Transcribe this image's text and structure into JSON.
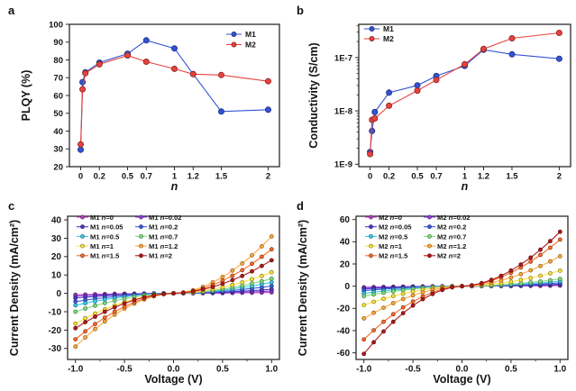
{
  "figure": {
    "panel_labels": [
      "a",
      "b",
      "c",
      "d"
    ],
    "background": "#ffffff",
    "axis_color": "#2b2b2b",
    "series_colors": {
      "M1": "#3353d4",
      "M2": "#e8423e",
      "n0": "#c040c8",
      "n002": "#9044dd",
      "n005": "#5338cc",
      "n02": "#3a5fdd",
      "n05": "#38c8ec",
      "n07": "#7fdc7f",
      "n1": "#fde23a",
      "n12": "#ffa93e",
      "n15": "#f96b2b",
      "n2": "#b01a1a"
    }
  },
  "chart_data": [
    {
      "panel": "a",
      "type": "line",
      "title": "",
      "xlabel": "n",
      "xlabel_italic": true,
      "ylabel": "PLQY (%)",
      "xlim": [
        -0.12,
        2.12
      ],
      "ylim": [
        20,
        100
      ],
      "grid": false,
      "legend_position": "top-right",
      "xticks": [
        0,
        0.2,
        0.5,
        0.7,
        1,
        1.2,
        1.5,
        2
      ],
      "xtick_labels": [
        "0",
        "0.2",
        "0.5",
        "0.7",
        "1",
        "1.2",
        "1.5",
        "2"
      ],
      "yticks": [
        20,
        30,
        40,
        50,
        60,
        70,
        80,
        90,
        100
      ],
      "ytick_labels": [
        "20",
        "30",
        "40",
        "50",
        "60",
        "70",
        "80",
        "90",
        "100"
      ],
      "x": [
        0,
        0.02,
        0.05,
        0.2,
        0.5,
        0.7,
        1,
        1.2,
        1.5,
        2
      ],
      "series": [
        {
          "name": "M1",
          "color": "#3353d4",
          "y": [
            29.5,
            67.5,
            73,
            78.5,
            83.5,
            91,
            86.5,
            72,
            51,
            52
          ]
        },
        {
          "name": "M2",
          "color": "#e8423e",
          "y": [
            32.5,
            63.5,
            72.5,
            77.5,
            82.5,
            79,
            75,
            72,
            71.5,
            68
          ]
        }
      ]
    },
    {
      "panel": "b",
      "type": "line",
      "title": "",
      "xlabel": "n",
      "xlabel_italic": true,
      "ylabel": "Conductivity (S/cm)",
      "xlim": [
        -0.12,
        2.12
      ],
      "ylim": [
        9e-10,
        4.2e-07
      ],
      "yscale": "log",
      "grid": false,
      "legend_position": "top-left",
      "xticks": [
        0,
        0.2,
        0.5,
        0.7,
        1,
        1.2,
        1.5,
        2
      ],
      "xtick_labels": [
        "0",
        "0.2",
        "0.5",
        "0.7",
        "1",
        "1.2",
        "1.5",
        "2"
      ],
      "yticks": [
        1e-09,
        1e-08,
        1e-07
      ],
      "ytick_labels": [
        "1E-9",
        "1E-8",
        "1E-7"
      ],
      "x": [
        0,
        0.02,
        0.05,
        0.2,
        0.5,
        0.7,
        1,
        1.2,
        1.5,
        2
      ],
      "series": [
        {
          "name": "M1",
          "color": "#3353d4",
          "y": [
            1.7e-09,
            4.2e-09,
            9.5e-09,
            2.2e-08,
            3e-08,
            4.5e-08,
            7e-08,
            1.4e-07,
            1.15e-07,
            9.5e-08
          ]
        },
        {
          "name": "M2",
          "color": "#e8423e",
          "y": [
            1.55e-09,
            6.8e-09,
            7.2e-09,
            1.25e-08,
            2.4e-08,
            3.8e-08,
            7.5e-08,
            1.45e-07,
            2.3e-07,
            2.9e-07
          ]
        }
      ]
    },
    {
      "panel": "c",
      "type": "line",
      "title": "",
      "xlabel": "Voltage (V)",
      "ylabel": "Current Density (mA/cm²)",
      "xlim": [
        -1.08,
        1.08
      ],
      "ylim": [
        -36,
        42
      ],
      "grid": false,
      "legend_position": "top-two-column",
      "xticks": [
        -1.0,
        -0.5,
        0.0,
        0.5,
        1.0
      ],
      "xtick_labels": [
        "-1.0",
        "-0.5",
        "0.0",
        "0.5",
        "1.0"
      ],
      "xminor_step": 0.25,
      "yticks": [
        -30,
        -20,
        -10,
        0,
        10,
        20,
        30,
        40
      ],
      "ytick_labels": [
        "-30",
        "-20",
        "-10",
        "0",
        "10",
        "20",
        "30",
        "40"
      ],
      "x": [
        -1,
        -0.9,
        -0.8,
        -0.7,
        -0.6,
        -0.5,
        -0.4,
        -0.3,
        -0.2,
        -0.1,
        0,
        0.1,
        0.2,
        0.3,
        0.4,
        0.5,
        0.6,
        0.7,
        0.8,
        0.9,
        1
      ],
      "series": [
        {
          "name": "M1 n=0",
          "color": "#c040c8",
          "y": [
            -0.8,
            -0.7,
            -0.5,
            -0.4,
            -0.3,
            -0.2,
            -0.2,
            -0.1,
            0.0,
            0.0,
            0,
            0.0,
            0.0,
            0.1,
            0.1,
            0.1,
            0.2,
            0.3,
            0.3,
            0.4,
            0.5
          ]
        },
        {
          "name": "M1 n=0.02",
          "color": "#9044dd",
          "y": [
            -1.5,
            -1.2,
            -1.0,
            -0.8,
            -0.6,
            -0.4,
            -0.3,
            -0.2,
            -0.1,
            0.0,
            0,
            0.0,
            0.1,
            0.1,
            0.2,
            0.3,
            0.5,
            0.6,
            0.8,
            1.0,
            1.2
          ]
        },
        {
          "name": "M1 n=0.05",
          "color": "#5338cc",
          "y": [
            -2.5,
            -2.1,
            -1.7,
            -1.3,
            -1.0,
            -0.7,
            -0.5,
            -0.3,
            -0.1,
            0.0,
            0,
            0.0,
            0.1,
            0.3,
            0.4,
            0.6,
            0.9,
            1.2,
            1.5,
            1.8,
            2.2
          ]
        },
        {
          "name": "M1 n=0.2",
          "color": "#3a5fdd",
          "y": [
            -4.5,
            -3.7,
            -3.0,
            -2.4,
            -1.8,
            -1.3,
            -0.9,
            -0.5,
            -0.2,
            -0.1,
            0,
            0.1,
            0.2,
            0.5,
            0.8,
            1.1,
            1.5,
            2.1,
            2.7,
            3.3,
            4.0
          ]
        },
        {
          "name": "M1 n=0.5",
          "color": "#38c8ec",
          "y": [
            -6.5,
            -5.4,
            -4.3,
            -3.4,
            -2.6,
            -1.9,
            -1.2,
            -0.7,
            -0.4,
            -0.1,
            0,
            0.1,
            0.3,
            0.7,
            1.2,
            1.7,
            2.4,
            3.2,
            4.0,
            5.0,
            6.0
          ]
        },
        {
          "name": "M1 n=0.7",
          "color": "#7fdc7f",
          "y": [
            -10.0,
            -8.3,
            -6.7,
            -5.3,
            -4.0,
            -2.9,
            -1.9,
            -1.1,
            -0.6,
            -0.2,
            0,
            0.1,
            0.4,
            0.9,
            1.5,
            2.3,
            3.2,
            4.2,
            5.4,
            6.6,
            8.0
          ]
        },
        {
          "name": "M1 n=1",
          "color": "#fde23a",
          "y": [
            -16.5,
            -13.6,
            -11.0,
            -8.7,
            -6.6,
            -4.7,
            -3.2,
            -1.9,
            -0.9,
            -0.3,
            0,
            0.2,
            0.6,
            1.3,
            2.2,
            3.3,
            4.6,
            6.0,
            7.7,
            9.5,
            11.5
          ]
        },
        {
          "name": "M1 n=1.2",
          "color": "#ffa93e",
          "y": [
            -29.0,
            -24.0,
            -19.4,
            -15.3,
            -11.6,
            -8.3,
            -5.6,
            -3.3,
            -1.6,
            -0.5,
            0,
            0.5,
            1.7,
            3.5,
            6.0,
            8.9,
            12.4,
            16.3,
            20.7,
            25.6,
            31.0
          ]
        },
        {
          "name": "M1 n=1.5",
          "color": "#f96b2b",
          "y": [
            -25.0,
            -20.7,
            -16.7,
            -13.2,
            -10.0,
            -7.2,
            -4.8,
            -2.9,
            -1.4,
            -0.4,
            0,
            0.4,
            1.3,
            2.7,
            4.6,
            6.9,
            9.6,
            12.6,
            16.1,
            19.9,
            24.0
          ]
        },
        {
          "name": "M1 n=2",
          "color": "#b01a1a",
          "y": [
            -19.0,
            -15.7,
            -12.7,
            -10.0,
            -7.6,
            -5.5,
            -3.6,
            -2.2,
            -1.0,
            -0.3,
            0,
            0.3,
            1.0,
            2.1,
            3.5,
            5.2,
            7.2,
            9.5,
            12.0,
            14.9,
            18.0
          ]
        }
      ]
    },
    {
      "panel": "d",
      "type": "line",
      "title": "",
      "xlabel": "Voltage (V)",
      "ylabel": "Current Density (mA/cm²)",
      "xlim": [
        -1.08,
        1.08
      ],
      "ylim": [
        -66,
        63
      ],
      "grid": false,
      "legend_position": "top-two-column",
      "xticks": [
        -1.0,
        -0.5,
        0.0,
        0.5,
        1.0
      ],
      "xtick_labels": [
        "-1.0",
        "-0.5",
        "0.0",
        "0.5",
        "1.0"
      ],
      "xminor_step": 0.25,
      "yticks": [
        -60,
        -40,
        -20,
        0,
        20,
        40,
        60
      ],
      "ytick_labels": [
        "-60",
        "-40",
        "-20",
        "0",
        "20",
        "40",
        "60"
      ],
      "x": [
        -1,
        -0.9,
        -0.8,
        -0.7,
        -0.6,
        -0.5,
        -0.4,
        -0.3,
        -0.2,
        -0.1,
        0,
        0.1,
        0.2,
        0.3,
        0.4,
        0.5,
        0.6,
        0.7,
        0.8,
        0.9,
        1
      ],
      "series": [
        {
          "name": "M2 n=0",
          "color": "#c040c8",
          "y": [
            -1.0,
            -0.8,
            -0.7,
            -0.5,
            -0.4,
            -0.3,
            -0.2,
            -0.1,
            -0.1,
            0.0,
            0,
            0.0,
            0.0,
            0.1,
            0.1,
            0.1,
            0.2,
            0.3,
            0.3,
            0.4,
            0.5
          ]
        },
        {
          "name": "M2 n=0.02",
          "color": "#9044dd",
          "y": [
            -1.5,
            -1.2,
            -1.0,
            -0.8,
            -0.6,
            -0.4,
            -0.3,
            -0.2,
            -0.1,
            0.0,
            0,
            0.0,
            0.1,
            0.1,
            0.2,
            0.3,
            0.4,
            0.5,
            0.7,
            0.8,
            1.0
          ]
        },
        {
          "name": "M2 n=0.05",
          "color": "#5338cc",
          "y": [
            -2.5,
            -2.1,
            -1.7,
            -1.3,
            -1.0,
            -0.7,
            -0.5,
            -0.3,
            -0.1,
            0.0,
            0,
            0.0,
            0.1,
            0.2,
            0.3,
            0.5,
            0.7,
            0.9,
            1.2,
            1.5,
            1.8
          ]
        },
        {
          "name": "M2 n=0.2",
          "color": "#3a5fdd",
          "y": [
            -4.0,
            -3.3,
            -2.7,
            -2.1,
            -1.6,
            -1.1,
            -0.8,
            -0.5,
            -0.2,
            -0.1,
            0,
            0.0,
            0.2,
            0.3,
            0.6,
            0.9,
            1.2,
            1.6,
            2.0,
            2.5,
            3.0
          ]
        },
        {
          "name": "M2 n=0.5",
          "color": "#38c8ec",
          "y": [
            -6.5,
            -5.4,
            -4.3,
            -3.4,
            -2.6,
            -1.9,
            -1.2,
            -0.7,
            -0.4,
            -0.1,
            0,
            0.1,
            0.2,
            0.5,
            0.9,
            1.3,
            1.8,
            2.4,
            3.0,
            3.7,
            4.5
          ]
        },
        {
          "name": "M2 n=0.7",
          "color": "#7fdc7f",
          "y": [
            -9.0,
            -7.4,
            -6.0,
            -4.7,
            -3.6,
            -2.6,
            -1.7,
            -1.0,
            -0.5,
            -0.1,
            0,
            0.1,
            0.4,
            0.7,
            1.2,
            1.9,
            2.6,
            3.4,
            4.3,
            5.4,
            6.5
          ]
        },
        {
          "name": "M2 n=1",
          "color": "#fde23a",
          "y": [
            -17.0,
            -14.1,
            -11.4,
            -8.9,
            -6.8,
            -4.9,
            -3.3,
            -1.9,
            -0.9,
            -0.3,
            0,
            0.2,
            0.8,
            1.6,
            2.7,
            4.0,
            5.6,
            7.4,
            9.4,
            11.6,
            14.0
          ]
        },
        {
          "name": "M2 n=1.2",
          "color": "#ffa93e",
          "y": [
            -29.0,
            -24.0,
            -19.4,
            -15.3,
            -11.6,
            -8.3,
            -5.6,
            -3.3,
            -1.6,
            -0.5,
            0,
            0.4,
            1.5,
            3.1,
            5.2,
            7.8,
            10.8,
            14.2,
            18.1,
            22.3,
            27.0
          ]
        },
        {
          "name": "M2 n=1.5",
          "color": "#f96b2b",
          "y": [
            -48.0,
            -39.7,
            -32.1,
            -25.3,
            -19.1,
            -13.8,
            -9.2,
            -5.5,
            -2.6,
            -0.8,
            0,
            0.7,
            2.3,
            4.8,
            8.1,
            12.1,
            16.8,
            22.1,
            28.1,
            34.7,
            42.0
          ]
        },
        {
          "name": "M2 n=2",
          "color": "#b01a1a",
          "y": [
            -61.0,
            -50.5,
            -40.8,
            -32.1,
            -24.3,
            -17.5,
            -11.7,
            -7.0,
            -3.4,
            -1.0,
            0,
            0.8,
            2.7,
            5.6,
            9.4,
            14.1,
            19.5,
            25.8,
            32.8,
            40.5,
            49.0
          ]
        }
      ]
    }
  ]
}
